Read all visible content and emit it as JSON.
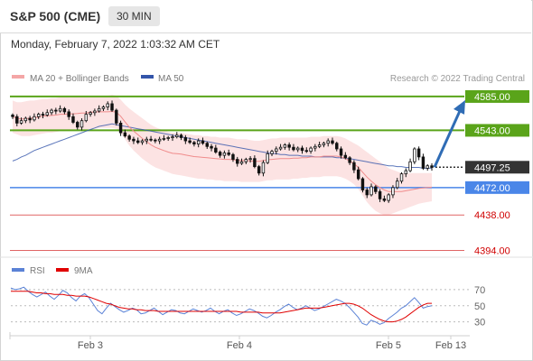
{
  "header": {
    "title": "S&P 500 (CME)",
    "timeframe": "30 MIN"
  },
  "datetime": "Monday, February 7, 2022 1:03:32 AM CET",
  "legend": {
    "bb_label": "MA 20 + Bollinger Bands",
    "ma50_label": "MA 50",
    "credit": "Research © 2022 Trading Central"
  },
  "rsi_legend": {
    "rsi_label": "RSI",
    "ma_label": "9MA"
  },
  "colors": {
    "support_resistance": "#5aa41a",
    "pivot": "#4a86e8",
    "minor": "#e06666",
    "arrow": "#2f6cb5",
    "candle": "#111111",
    "bb_fill": "#fbd9d9",
    "ma50": "#3355aa",
    "rsi": "#5b82d6",
    "rsi_ma": "#e00000"
  },
  "chart_data": [
    {
      "type": "candlestick",
      "title": "S&P 500 (CME) 30 MIN",
      "x_ticks": [
        "Feb 3",
        "Feb 4",
        "Feb 5",
        "Feb 13"
      ],
      "ylim": [
        4380,
        4595
      ],
      "last_price": 4497.25,
      "levels": [
        {
          "label": "4585.00",
          "value": 4585.0,
          "kind": "resistance"
        },
        {
          "label": "4543.00",
          "value": 4543.0,
          "kind": "resistance"
        },
        {
          "label": "4497.25",
          "value": 4497.25,
          "kind": "last"
        },
        {
          "label": "4472.00",
          "value": 4472.0,
          "kind": "pivot"
        },
        {
          "label": "4438.00",
          "value": 4438.0,
          "kind": "support"
        },
        {
          "label": "4394.00",
          "value": 4394.0,
          "kind": "support"
        }
      ],
      "target": 4585.0,
      "closes": [
        4560,
        4552,
        4555,
        4558,
        4556,
        4560,
        4563,
        4562,
        4565,
        4568,
        4567,
        4570,
        4566,
        4560,
        4553,
        4547,
        4555,
        4563,
        4565,
        4567,
        4570,
        4572,
        4576,
        4568,
        4552,
        4540,
        4536,
        4532,
        4530,
        4528,
        4530,
        4532,
        4531,
        4530,
        4532,
        4533,
        4534,
        4535,
        4537,
        4534,
        4530,
        4528,
        4526,
        4530,
        4527,
        4523,
        4521,
        4516,
        4512,
        4515,
        4513,
        4507,
        4502,
        4504,
        4507,
        4508,
        4498,
        4490,
        4503,
        4514,
        4517,
        4520,
        4522,
        4525,
        4522,
        4519,
        4521,
        4518,
        4517,
        4521,
        4523,
        4525,
        4527,
        4530,
        4527,
        4520,
        4512,
        4509,
        4503,
        4494,
        4483,
        4469,
        4463,
        4473,
        4467,
        4458,
        4456,
        4463,
        4472,
        4480,
        4489,
        4493,
        4504,
        4520,
        4510,
        4496,
        4499,
        4497
      ],
      "bb_upper": [
        4580,
        4578,
        4578,
        4579,
        4580,
        4580,
        4581,
        4582,
        4582,
        4583,
        4583,
        4584,
        4584,
        4584,
        4584,
        4585,
        4585,
        4585,
        4586,
        4586,
        4586,
        4586,
        4586,
        4587,
        4586,
        4581,
        4575,
        4570,
        4566,
        4562,
        4558,
        4554,
        4550,
        4547,
        4545,
        4543,
        4541,
        4540,
        4540,
        4540,
        4539,
        4538,
        4537,
        4537,
        4536,
        4536,
        4535,
        4535,
        4534,
        4534,
        4534,
        4533,
        4532,
        4532,
        4532,
        4531,
        4530,
        4530,
        4531,
        4532,
        4533,
        4533,
        4534,
        4534,
        4534,
        4534,
        4534,
        4534,
        4534,
        4535,
        4535,
        4535,
        4536,
        4536,
        4536,
        4536,
        4535,
        4533,
        4530,
        4527,
        4524,
        4520,
        4516,
        4512,
        4508,
        4504,
        4500,
        4496,
        4494,
        4492,
        4490,
        4490,
        4490,
        4490,
        4490,
        4490,
        4490,
        4490
      ],
      "bb_lower": [
        4540,
        4538,
        4536,
        4536,
        4536,
        4537,
        4538,
        4539,
        4540,
        4540,
        4541,
        4542,
        4542,
        4543,
        4543,
        4543,
        4544,
        4544,
        4545,
        4545,
        4546,
        4546,
        4546,
        4546,
        4545,
        4540,
        4532,
        4524,
        4518,
        4513,
        4508,
        4504,
        4500,
        4497,
        4495,
        4493,
        4491,
        4489,
        4488,
        4487,
        4486,
        4485,
        4484,
        4483,
        4483,
        4482,
        4482,
        4481,
        4481,
        4480,
        4480,
        4480,
        4480,
        4479,
        4479,
        4479,
        4479,
        4479,
        4480,
        4481,
        4481,
        4482,
        4482,
        4482,
        4482,
        4483,
        4483,
        4484,
        4484,
        4485,
        4485,
        4485,
        4486,
        4486,
        4486,
        4486,
        4485,
        4483,
        4480,
        4476,
        4470,
        4462,
        4454,
        4448,
        4443,
        4440,
        4438,
        4438,
        4440,
        4442,
        4444,
        4446,
        4448,
        4450,
        4452,
        4453,
        4454,
        4455
      ],
      "ma50": [
        4505,
        4507,
        4510,
        4512,
        4515,
        4518,
        4520,
        4522,
        4524,
        4526,
        4528,
        4530,
        4532,
        4534,
        4536,
        4538,
        4540,
        4542,
        4544,
        4546,
        4548,
        4549,
        4550,
        4551,
        4550,
        4549,
        4548,
        4547,
        4546,
        4545,
        4544,
        4543,
        4542,
        4541,
        4540,
        4539,
        4538,
        4537,
        4536,
        4535,
        4534,
        4533,
        4532,
        4531,
        4530,
        4529,
        4528,
        4527,
        4526,
        4525,
        4524,
        4523,
        4522,
        4521,
        4520,
        4519,
        4518,
        4517,
        4516,
        4515,
        4514,
        4514,
        4513,
        4513,
        4512,
        4512,
        4512,
        4511,
        4511,
        4511,
        4510,
        4510,
        4510,
        4510,
        4510,
        4509,
        4509,
        4508,
        4508,
        4507,
        4506,
        4505,
        4504,
        4503,
        4502,
        4501,
        4500,
        4499,
        4499,
        4498,
        4498,
        4497,
        4497,
        4497,
        4497,
        4496,
        4496,
        4496
      ]
    },
    {
      "type": "line",
      "title": "RSI",
      "ylim": [
        15,
        80
      ],
      "y_ticks": [
        70,
        50,
        30
      ],
      "series": [
        {
          "name": "RSI",
          "values": [
            72,
            70,
            71,
            73,
            68,
            64,
            61,
            64,
            67,
            62,
            58,
            63,
            69,
            66,
            60,
            56,
            62,
            65,
            60,
            52,
            44,
            40,
            47,
            53,
            49,
            45,
            42,
            44,
            47,
            45,
            40,
            41,
            44,
            47,
            43,
            39,
            42,
            45,
            44,
            41,
            40,
            43,
            46,
            44,
            42,
            44,
            47,
            43,
            40,
            43,
            45,
            41,
            38,
            40,
            43,
            46,
            44,
            41,
            37,
            35,
            38,
            42,
            45,
            49,
            52,
            48,
            45,
            47,
            50,
            47,
            44,
            46,
            49,
            52,
            55,
            58,
            56,
            53,
            48,
            42,
            36,
            28,
            26,
            32,
            30,
            27,
            29,
            34,
            38,
            42,
            47,
            50,
            55,
            60,
            54,
            47,
            49,
            50
          ]
        },
        {
          "name": "9MA",
          "values": [
            68,
            68,
            68,
            68,
            68,
            67,
            66,
            66,
            65,
            65,
            64,
            64,
            64,
            63,
            63,
            62,
            62,
            62,
            61,
            59,
            57,
            55,
            53,
            52,
            50,
            48,
            47,
            46,
            46,
            45,
            45,
            44,
            44,
            44,
            43,
            43,
            43,
            43,
            43,
            43,
            43,
            43,
            43,
            43,
            43,
            43,
            43,
            43,
            43,
            43,
            43,
            43,
            43,
            42,
            42,
            42,
            42,
            42,
            41,
            41,
            41,
            41,
            41,
            42,
            43,
            44,
            45,
            46,
            47,
            47,
            47,
            47,
            48,
            49,
            50,
            51,
            52,
            53,
            53,
            52,
            50,
            47,
            43,
            39,
            36,
            33,
            31,
            30,
            30,
            31,
            33,
            36,
            40,
            44,
            48,
            51,
            53,
            53
          ]
        }
      ]
    }
  ]
}
